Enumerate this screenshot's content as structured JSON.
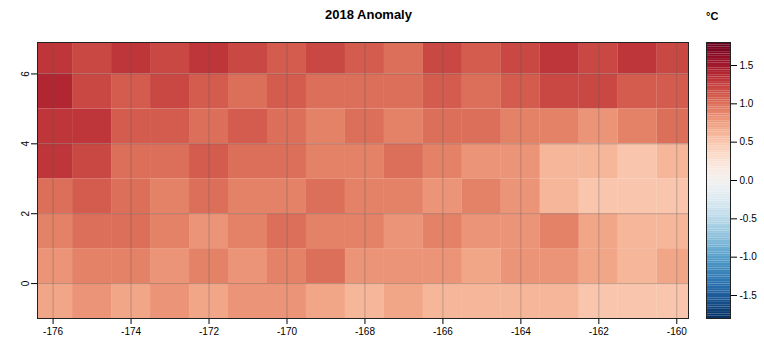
{
  "chart_data": {
    "type": "heatmap",
    "title": "2018 Anomaly",
    "x": [
      -176,
      -175,
      -174,
      -173,
      -172,
      -171,
      -170,
      -169,
      -168,
      -167,
      -166,
      -165,
      -164,
      -163,
      -162,
      -161,
      -160
    ],
    "y": [
      -0.5,
      0.5,
      1.5,
      2.5,
      3.5,
      4.5,
      5.5,
      6.5
    ],
    "values": [
      [
        0.7,
        0.8,
        0.7,
        0.8,
        0.7,
        0.8,
        0.8,
        0.7,
        0.6,
        0.7,
        0.6,
        0.6,
        0.6,
        0.6,
        0.5,
        0.5,
        0.5
      ],
      [
        0.8,
        0.9,
        0.9,
        0.8,
        0.9,
        0.8,
        0.9,
        1.0,
        0.8,
        0.8,
        0.8,
        0.7,
        0.8,
        0.8,
        0.7,
        0.6,
        0.7
      ],
      [
        0.9,
        1.0,
        1.0,
        0.9,
        0.8,
        0.9,
        1.0,
        0.9,
        0.9,
        0.8,
        0.9,
        0.8,
        0.8,
        0.9,
        0.7,
        0.6,
        0.6
      ],
      [
        1.0,
        1.1,
        1.0,
        0.9,
        1.0,
        0.9,
        0.9,
        1.0,
        0.9,
        0.9,
        0.8,
        0.9,
        0.8,
        0.6,
        0.5,
        0.5,
        0.5
      ],
      [
        1.3,
        1.2,
        1.0,
        1.0,
        1.1,
        1.0,
        1.0,
        0.9,
        0.9,
        1.0,
        0.9,
        0.8,
        0.8,
        0.6,
        0.6,
        0.5,
        0.6
      ],
      [
        1.3,
        1.3,
        1.1,
        1.1,
        1.0,
        1.1,
        1.0,
        0.9,
        1.0,
        0.9,
        1.0,
        1.0,
        0.9,
        0.9,
        0.8,
        0.9,
        1.0
      ],
      [
        1.4,
        1.2,
        1.1,
        1.2,
        1.1,
        1.0,
        1.1,
        1.0,
        1.0,
        1.0,
        1.1,
        1.0,
        1.1,
        1.2,
        1.2,
        1.1,
        1.1
      ],
      [
        1.3,
        1.2,
        1.3,
        1.2,
        1.3,
        1.2,
        1.1,
        1.2,
        1.1,
        1.0,
        1.2,
        1.1,
        1.2,
        1.3,
        1.2,
        1.3,
        1.2
      ]
    ],
    "xlim": [
      -176.4,
      -159.7
    ],
    "ylim": [
      -1,
      6.9
    ],
    "xticks": [
      -176,
      -174,
      -172,
      -170,
      -168,
      -166,
      -164,
      -162,
      -160
    ],
    "yticks": [
      0,
      2,
      4,
      6
    ],
    "grid": true,
    "colorbar": {
      "label": "°C",
      "lim": [
        -1.8,
        1.8
      ],
      "ticks": [
        1.5,
        {
          "value": 1.0,
          "label": "1.0"
        },
        0.5,
        {
          "value": 0.0,
          "label": "0.0"
        },
        -0.5,
        {
          "value": -1.0,
          "label": "-1.0"
        },
        -1.5
      ]
    }
  }
}
